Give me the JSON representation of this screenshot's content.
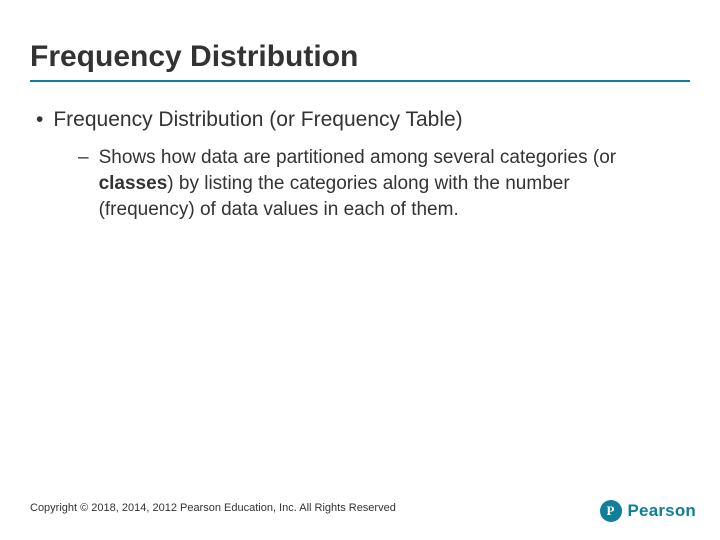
{
  "colors": {
    "accent": "#0f7f9a",
    "text": "#333333",
    "background": "#ffffff"
  },
  "slide": {
    "title": "Frequency Distribution",
    "bullets": [
      {
        "marker": "•",
        "text": "Frequency Distribution (or Frequency Table)",
        "children": [
          {
            "marker": "–",
            "text_html": "Shows how data are partitioned among several categories (or <b>classes</b>) by listing the categories along with the number (frequency) of data values in each of them."
          }
        ]
      }
    ]
  },
  "footer": {
    "copyright": "Copyright © 2018, 2014, 2012 Pearson Education, Inc. All Rights Reserved"
  },
  "brand": {
    "letter": "P",
    "name": "Pearson"
  }
}
